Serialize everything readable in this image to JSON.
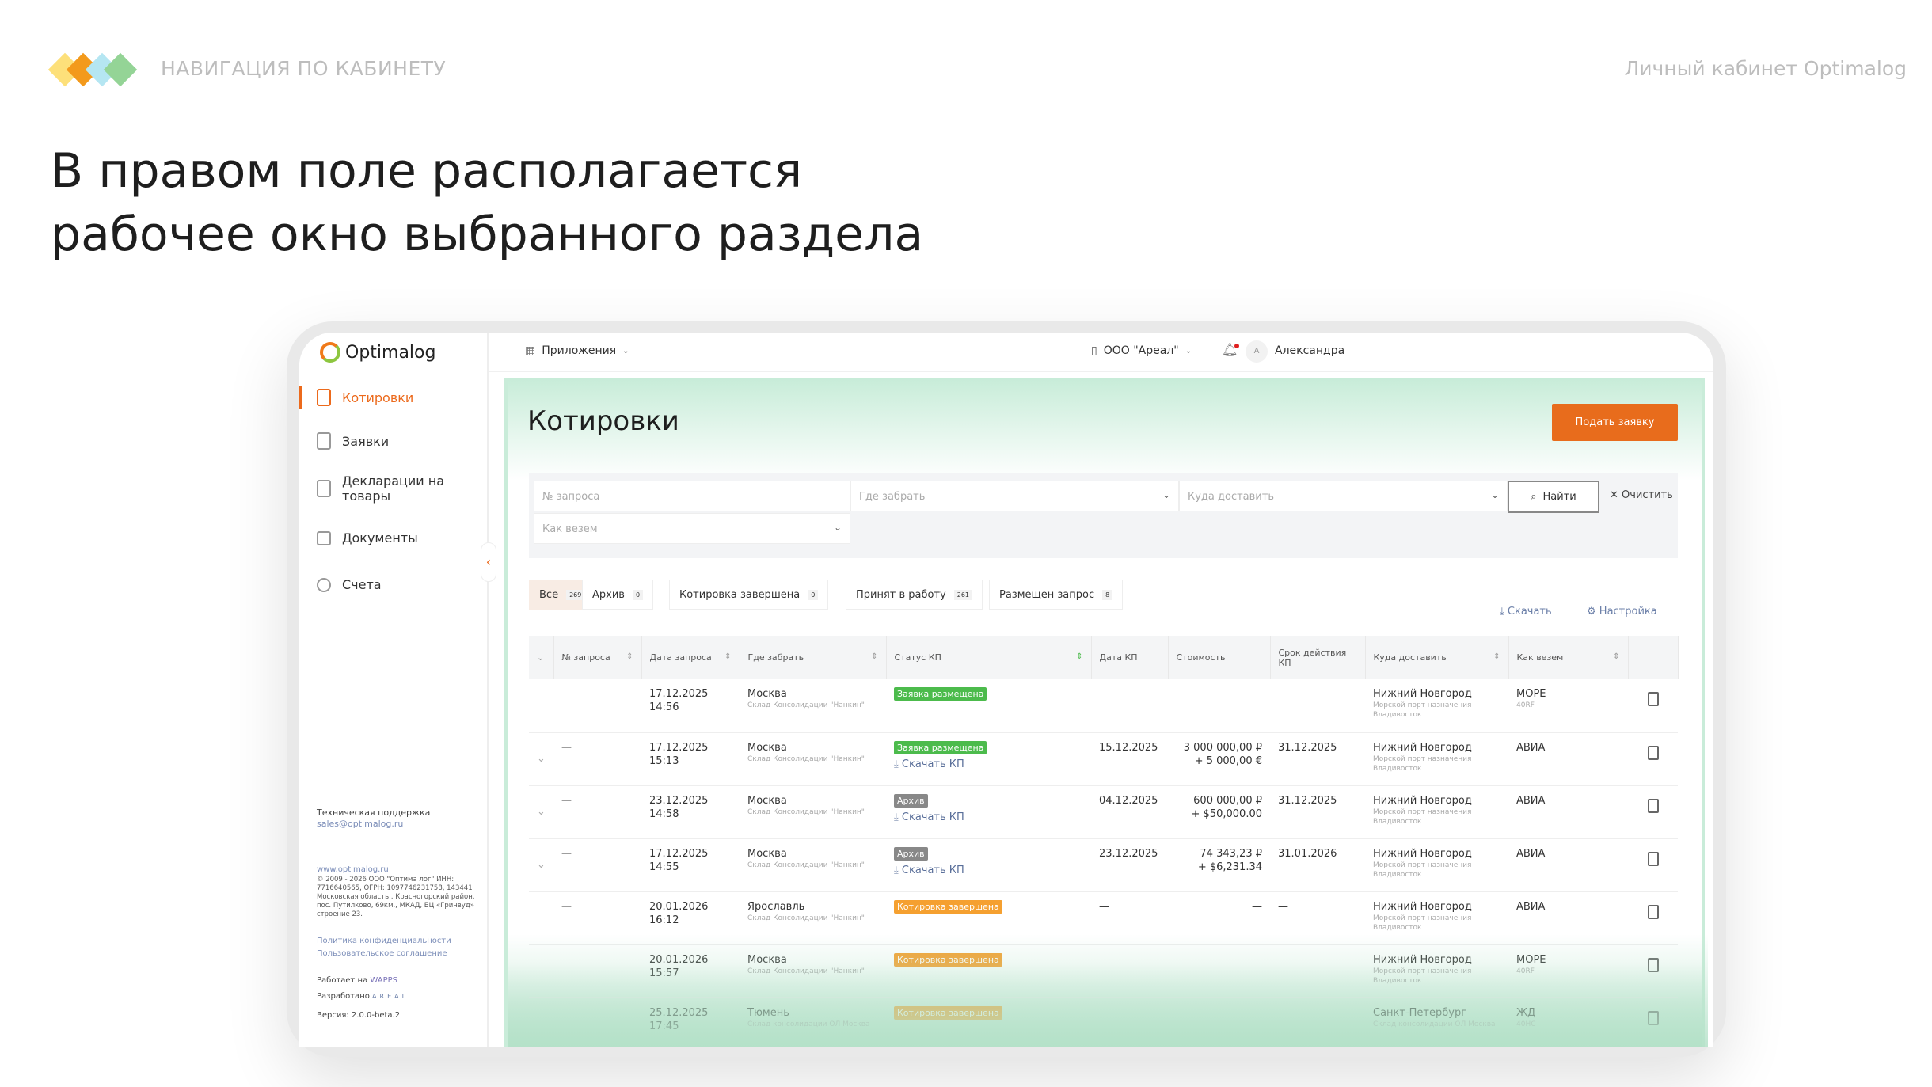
{
  "slide": {
    "section": "НАВИГАЦИЯ ПО КАБИНЕТУ",
    "right_title": "Личный кабинет Optimalog",
    "headline_1": "В правом поле располагается",
    "headline_2": "рабочее окно выбранного раздела",
    "diamond_colors": [
      "#fde07a",
      "#f39a1c",
      "#b5e6f2",
      "#94d496"
    ]
  },
  "app": {
    "logo": "Optimalog",
    "sidebar": {
      "items": [
        {
          "label": "Котировки",
          "icon": "ruble-doc-icon"
        },
        {
          "label": "Заявки",
          "icon": "clipboard-icon"
        },
        {
          "label": "Декларации на товары",
          "icon": "document-icon"
        },
        {
          "label": "Документы",
          "icon": "folder-icon"
        },
        {
          "label": "Счета",
          "icon": "coins-icon"
        }
      ],
      "support_title": "Техническая поддержка",
      "support_email": "sales@optimalog.ru",
      "site": "www.optimalog.ru",
      "legal": "© 2009 - 2026 ООО \"Оптима лог\" ИНН: 7716640565, ОГРН: 1097746231758, 143441 Московская область., Красногорский район, пос. Путилково, 69км., МКАД, БЦ «Гринвуд» строение 23.",
      "privacy": "Политика конфиденциальности",
      "agreement": "Пользовательское соглашение",
      "powered": "Работает на",
      "powered_brand": "WAPPS",
      "developed": "Разработано",
      "developed_brand": "AREAL",
      "version": "Версия: 2.0.0-beta.2"
    },
    "topbar": {
      "apps": "Приложения",
      "company": "ООО \"Ареал\"",
      "avatar": "А",
      "user": "Александра"
    },
    "page": {
      "title": "Котировки",
      "submit": "Подать заявку"
    },
    "filters": {
      "request_no": "№ запроса",
      "pickup": "Где забрать",
      "delivery": "Куда доставить",
      "transport": "Как везем",
      "find": "Найти",
      "clear": "Очистить"
    },
    "tabs": [
      {
        "label": "Все",
        "count": "269"
      },
      {
        "label": "Архив",
        "count": "0"
      },
      {
        "label": "Котировка завершена",
        "count": "0"
      },
      {
        "label": "Принят в работу",
        "count": "261"
      },
      {
        "label": "Размещен запрос",
        "count": "8"
      }
    ],
    "actions": {
      "download": "Скачать",
      "settings": "Настройка"
    },
    "columns": [
      "№ запроса",
      "Дата запроса",
      "Где забрать",
      "Статус КП",
      "Дата КП",
      "Стоимость",
      "Срок действия КП",
      "Куда доставить",
      "Как везем"
    ],
    "status_colors": {
      "Заявка размещена": "#4cbb4c",
      "Архив": "#888888",
      "Котировка завершена": "#f5a030"
    },
    "download_kp": "Скачать КП",
    "rows": [
      {
        "no": "—",
        "date": "17.12.2025",
        "time": "14:56",
        "from": "Москва",
        "from_sub": "Склад Консолидации \"Нанкин\"",
        "status": "Заявка размещена",
        "kp": false,
        "kp_date": "—",
        "cost1": "—",
        "cost2": "",
        "valid": "—",
        "to": "Нижний Новгород",
        "to_sub": "Морской порт назначения Владивосток",
        "mode": "МОРЕ",
        "mode_sub": "40RF",
        "expand": false
      },
      {
        "no": "—",
        "date": "17.12.2025",
        "time": "15:13",
        "from": "Москва",
        "from_sub": "Склад Консолидации \"Нанкин\"",
        "status": "Заявка размещена",
        "kp": true,
        "kp_date": "15.12.2025",
        "cost1": "3 000 000,00 ₽",
        "cost2": "+ 5 000,00 €",
        "valid": "31.12.2025",
        "to": "Нижний Новгород",
        "to_sub": "Морской порт назначения Владивосток",
        "mode": "АВИА",
        "mode_sub": "",
        "expand": true
      },
      {
        "no": "—",
        "date": "23.12.2025",
        "time": "14:58",
        "from": "Москва",
        "from_sub": "Склад Консолидации \"Нанкин\"",
        "status": "Архив",
        "kp": true,
        "kp_date": "04.12.2025",
        "cost1": "600 000,00 ₽",
        "cost2": "+ $50,000.00",
        "valid": "31.12.2025",
        "to": "Нижний Новгород",
        "to_sub": "Морской порт назначения Владивосток",
        "mode": "АВИА",
        "mode_sub": "",
        "expand": true
      },
      {
        "no": "—",
        "date": "17.12.2025",
        "time": "14:55",
        "from": "Москва",
        "from_sub": "Склад Консолидации \"Нанкин\"",
        "status": "Архив",
        "kp": true,
        "kp_date": "23.12.2025",
        "cost1": "74 343,23 ₽",
        "cost2": "+ $6,231.34",
        "valid": "31.01.2026",
        "to": "Нижний Новгород",
        "to_sub": "Морской порт назначения Владивосток",
        "mode": "АВИА",
        "mode_sub": "",
        "expand": true
      },
      {
        "no": "—",
        "date": "20.01.2026",
        "time": "16:12",
        "from": "Ярославль",
        "from_sub": "Склад Консолидации \"Нанкин\"",
        "status": "Котировка завершена",
        "kp": false,
        "kp_date": "—",
        "cost1": "—",
        "cost2": "",
        "valid": "—",
        "to": "Нижний Новгород",
        "to_sub": "Морской порт назначения Владивосток",
        "mode": "АВИА",
        "mode_sub": "",
        "expand": false
      },
      {
        "no": "—",
        "date": "20.01.2026",
        "time": "15:57",
        "from": "Москва",
        "from_sub": "Склад Консолидации \"Нанкин\"",
        "status": "Котировка завершена",
        "kp": false,
        "kp_date": "—",
        "cost1": "—",
        "cost2": "",
        "valid": "—",
        "to": "Нижний Новгород",
        "to_sub": "Морской порт назначения Владивосток",
        "mode": "МОРЕ",
        "mode_sub": "40RF",
        "expand": false
      },
      {
        "no": "—",
        "date": "25.12.2025",
        "time": "17:45",
        "from": "Тюмень",
        "from_sub": "Склад консолидации ОЛ Москва",
        "status": "Котировка завершена",
        "kp": false,
        "kp_date": "—",
        "cost1": "—",
        "cost2": "",
        "valid": "—",
        "to": "Санкт-Петербург",
        "to_sub": "Склад консолидации ОЛ Москва",
        "mode": "ЖД",
        "mode_sub": "40HC",
        "expand": false
      }
    ]
  }
}
